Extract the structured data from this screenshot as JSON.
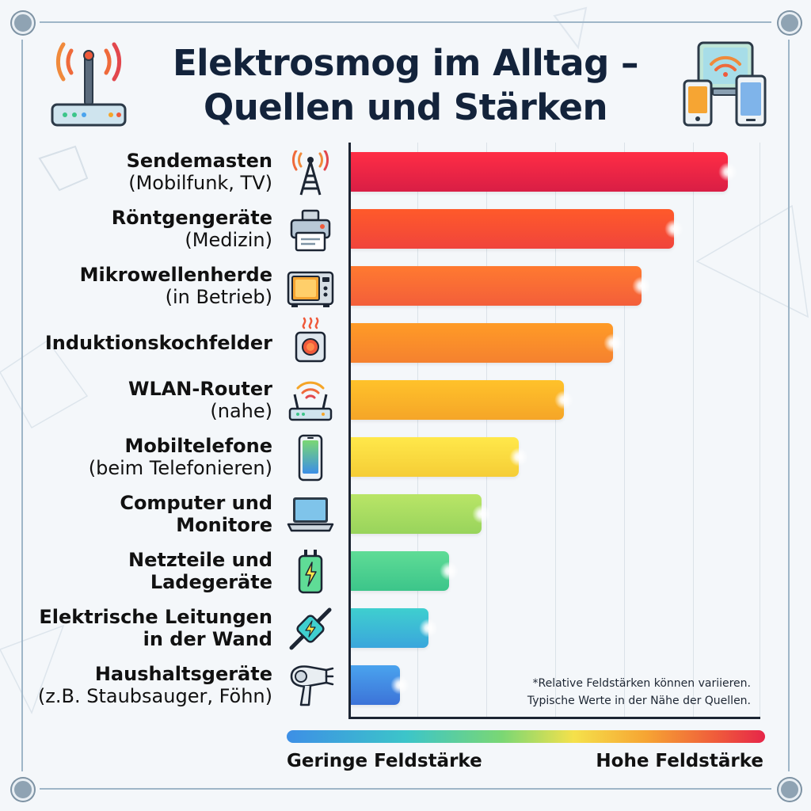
{
  "title": {
    "line1": "Elektrosmog im Alltag –",
    "line2": "Quellen und Stärken"
  },
  "header_icons": [
    "router-icon",
    "devices-icon"
  ],
  "chart_data": {
    "type": "bar",
    "orientation": "horizontal",
    "categories": [
      "Sendemasten (Mobilfunk, TV)",
      "Röntgengeräte (Medizin)",
      "Mikrowellenherde (in Betrieb)",
      "Induktionskochfelder",
      "WLAN-Router (nahe)",
      "Mobiltelefone (beim Telefonieren)",
      "Computer und Monitore",
      "Netzteile und Ladegeräte",
      "Elektrische Leitungen in der Wand",
      "Haushaltsgeräte (z.B. Staubsauger, Föhn)"
    ],
    "values": [
      9.2,
      7.9,
      7.1,
      6.4,
      5.2,
      4.1,
      3.2,
      2.4,
      1.9,
      1.2
    ],
    "xlim": [
      0,
      10
    ],
    "xlabel": "",
    "ylabel": "",
    "x_tick_labels": false,
    "grid": true,
    "legend": "color scale below plot (blue = low, red = high)"
  },
  "rows": [
    {
      "line1": "Sendemasten",
      "line2": "(Mobilfunk, TV)",
      "icon": "tower-icon",
      "color1": "#ff2d45",
      "color2": "#d91e45"
    },
    {
      "line1": "Röntgengeräte",
      "line2": "(Medizin)",
      "icon": "xray-device-icon",
      "color1": "#ff5a2a",
      "color2": "#f0443c"
    },
    {
      "line1": "Mikrowellenherde",
      "line2": "(in Betrieb)",
      "icon": "microwave-icon",
      "color1": "#ff7a30",
      "color2": "#f35e3a"
    },
    {
      "line1": "Induktionskochfelder",
      "line2": "",
      "icon": "induction-cooktop-icon",
      "color1": "#ff9b26",
      "color2": "#f5812f"
    },
    {
      "line1": "WLAN-Router",
      "line2": "(nahe)",
      "icon": "wifi-router-icon",
      "color1": "#ffc22a",
      "color2": "#f5a528"
    },
    {
      "line1": "Mobiltelefone",
      "line2": "(beim Telefonieren)",
      "icon": "smartphone-icon",
      "color1": "#ffe84a",
      "color2": "#f5cd36"
    },
    {
      "line1": "Computer und",
      "line2": "Monitore",
      "icon": "laptop-icon",
      "color1": "#b9e567",
      "color2": "#98d45c",
      "bold2": true
    },
    {
      "line1": "Netzteile und",
      "line2": "Ladegeräte",
      "icon": "charger-icon",
      "color1": "#5fdc96",
      "color2": "#3cc58a",
      "bold2": true
    },
    {
      "line1": "Elektrische Leitungen",
      "line2": "in der Wand",
      "icon": "electric-wire-icon",
      "color1": "#3fcfcf",
      "color2": "#3aa6dc",
      "bold2": true
    },
    {
      "line1": "Haushaltsgeräte",
      "line2": "(z.B. Staubsauger, Föhn)",
      "icon": "hair-dryer-icon",
      "color1": "#4aa3ee",
      "color2": "#3c73d8"
    }
  ],
  "note": {
    "line1": "*Relative Feldstärken können variieren.",
    "line2": "Typische Werte in der Nähe der Quellen."
  },
  "scale": {
    "low_label": "Geringe Feldstärke",
    "high_label": "Hohe Feldstärke",
    "colors": [
      "#3d8fe6",
      "#3cc5c9",
      "#7ad774",
      "#f5e14b",
      "#f6a533",
      "#ef5a3b",
      "#e62649"
    ]
  }
}
